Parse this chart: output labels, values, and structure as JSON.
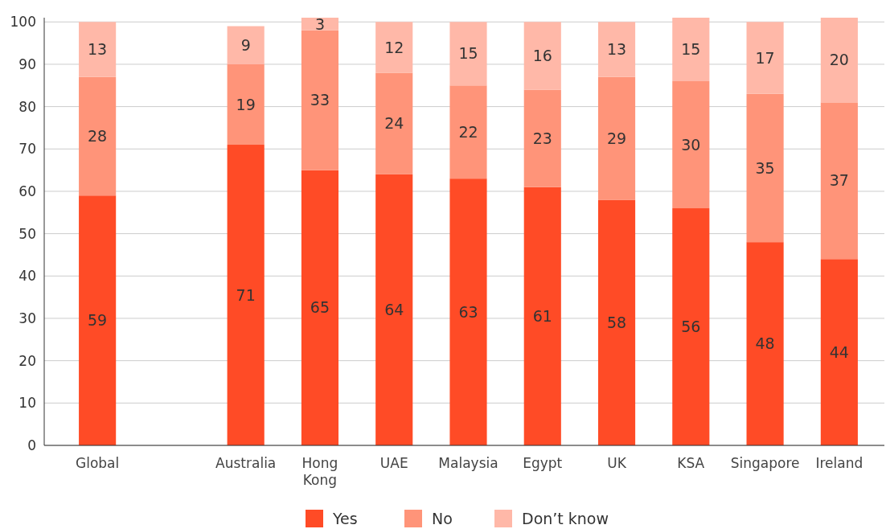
{
  "chart_data": {
    "type": "bar",
    "stacked": true,
    "categories": [
      "Global",
      null,
      "Australia",
      "Hong Kong",
      "UAE",
      "Malaysia",
      "Egypt",
      "UK",
      "KSA",
      "Singapore",
      "Ireland"
    ],
    "series": [
      {
        "name": "Yes",
        "color": "#ff4b26",
        "values": [
          59,
          null,
          71,
          65,
          64,
          63,
          61,
          58,
          56,
          48,
          44
        ]
      },
      {
        "name": "No",
        "color": "#ff9479",
        "values": [
          28,
          null,
          19,
          33,
          24,
          22,
          23,
          29,
          30,
          35,
          37
        ]
      },
      {
        "name": "Don’t know",
        "color": "#ffb8a8",
        "values": [
          13,
          null,
          9,
          3,
          12,
          15,
          16,
          13,
          15,
          17,
          20
        ]
      }
    ],
    "ylim": [
      0,
      101
    ],
    "yticks": [
      0,
      10,
      20,
      30,
      40,
      50,
      60,
      70,
      80,
      90,
      100
    ],
    "grid": "y",
    "legend": "bottom",
    "data_labels": true
  }
}
